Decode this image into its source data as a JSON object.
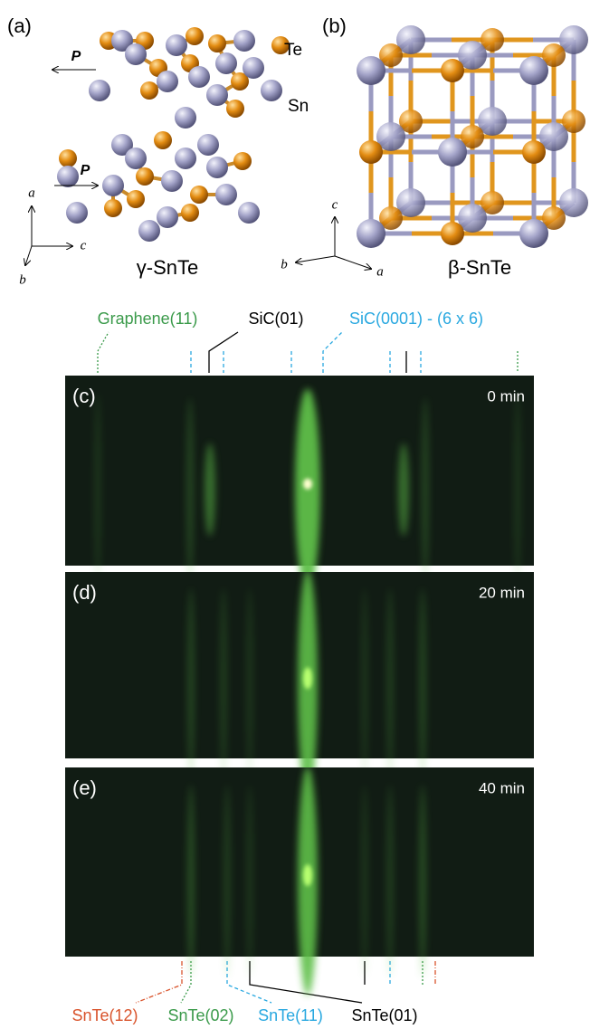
{
  "panel_a": {
    "label": "(a)",
    "title": "γ-SnTe",
    "polarization": [
      "P",
      "P"
    ],
    "atoms": [
      "Te",
      "Sn"
    ],
    "axes": [
      "a",
      "c",
      "b"
    ]
  },
  "panel_b": {
    "label": "(b)",
    "title": "β-SnTe",
    "axes": [
      "c",
      "b",
      "a"
    ]
  },
  "top_annotations": [
    "Graphene(11)",
    "SiC(01)",
    "SiC(0001) - (6 x 6)"
  ],
  "rheed": [
    {
      "label": "(c)",
      "time": "0 min"
    },
    {
      "label": "(d)",
      "time": "20 min"
    },
    {
      "label": "(e)",
      "time": "40 min"
    }
  ],
  "bottom_annotations": [
    "SnTe(12)",
    "SnTe(02)",
    "SnTe(11)",
    "SnTe(01)"
  ]
}
